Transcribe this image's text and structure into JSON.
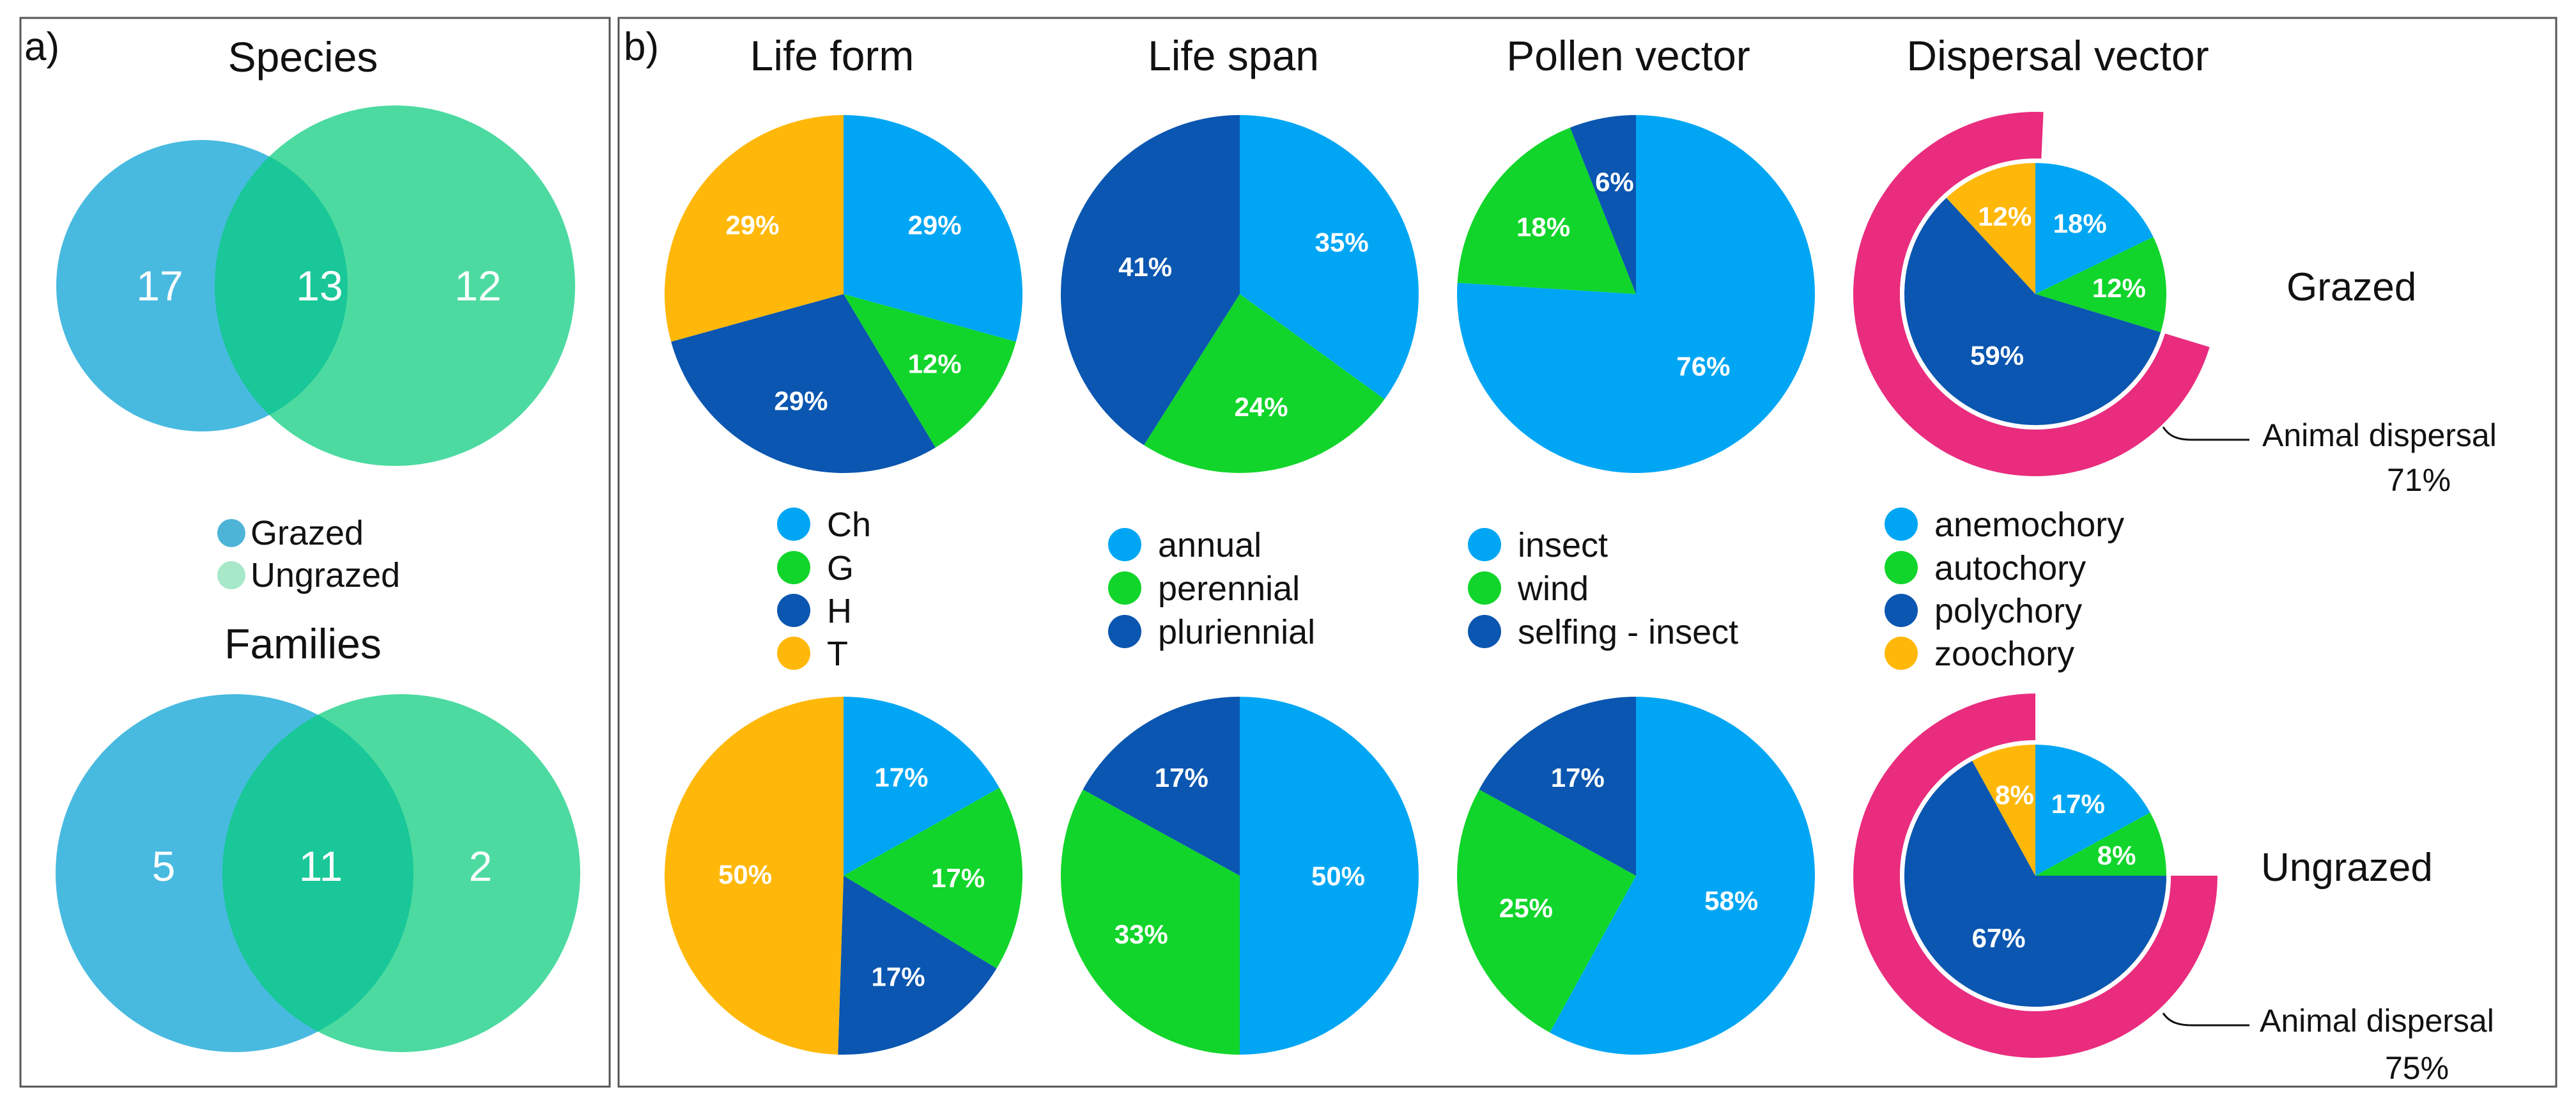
{
  "panel_a": {
    "tag": "a)",
    "species": {
      "title": "Species",
      "grazed_only": "17",
      "shared": "13",
      "ungrazed_only": "12"
    },
    "families": {
      "title": "Families",
      "grazed_only": "5",
      "shared": "11",
      "ungrazed_only": "2"
    },
    "legend": [
      "Grazed",
      "Ungrazed"
    ]
  },
  "panel_b": {
    "tag": "b)",
    "row_labels": {
      "grazed": "Grazed",
      "ungrazed": "Ungrazed"
    },
    "callouts": {
      "grazed": {
        "label": "Animal dispersal",
        "value": "71%"
      },
      "ungrazed": {
        "label": "Animal dispersal",
        "value": "75%"
      }
    }
  },
  "colors": {
    "light_blue": "#00A6F4",
    "green": "#11D52A",
    "dark_blue": "#0A56B0",
    "orange": "#FFB80A",
    "pink": "#E92C7E",
    "venn_grazed": "#28AEDB",
    "venn_ungrazed": "#07CC7B"
  },
  "chart_data": [
    {
      "type": "venn",
      "title": "Species",
      "sets": [
        "Grazed",
        "Ungrazed"
      ],
      "values": {
        "Grazed only": 17,
        "Both": 13,
        "Ungrazed only": 12
      }
    },
    {
      "type": "venn",
      "title": "Families",
      "sets": [
        "Grazed",
        "Ungrazed"
      ],
      "values": {
        "Grazed only": 5,
        "Both": 11,
        "Ungrazed only": 2
      }
    },
    {
      "type": "pie",
      "title": "Life form",
      "categories": [
        "Ch",
        "G",
        "H",
        "T"
      ],
      "series": [
        {
          "name": "Grazed",
          "values": [
            29,
            12,
            29,
            29
          ]
        },
        {
          "name": "Ungrazed",
          "values": [
            17,
            17,
            17,
            50
          ]
        }
      ]
    },
    {
      "type": "pie",
      "title": "Life span",
      "categories": [
        "annual",
        "perennial",
        "pluriennial"
      ],
      "series": [
        {
          "name": "Grazed",
          "values": [
            35,
            24,
            41
          ]
        },
        {
          "name": "Ungrazed",
          "values": [
            50,
            33,
            17
          ]
        }
      ]
    },
    {
      "type": "pie",
      "title": "Pollen vector",
      "categories": [
        "insect",
        "wind",
        "selfing - insect"
      ],
      "series": [
        {
          "name": "Grazed",
          "values": [
            76,
            18,
            6
          ]
        },
        {
          "name": "Ungrazed",
          "values": [
            58,
            25,
            17
          ]
        }
      ]
    },
    {
      "type": "pie",
      "title": "Dispersal vector",
      "categories": [
        "anemochory",
        "autochory",
        "polychory",
        "zoochory"
      ],
      "series": [
        {
          "name": "Grazed",
          "values": [
            18,
            12,
            59,
            12
          ],
          "animal_dispersal": 71
        },
        {
          "name": "Ungrazed",
          "values": [
            17,
            8,
            67,
            8
          ],
          "animal_dispersal": 75
        }
      ]
    }
  ]
}
